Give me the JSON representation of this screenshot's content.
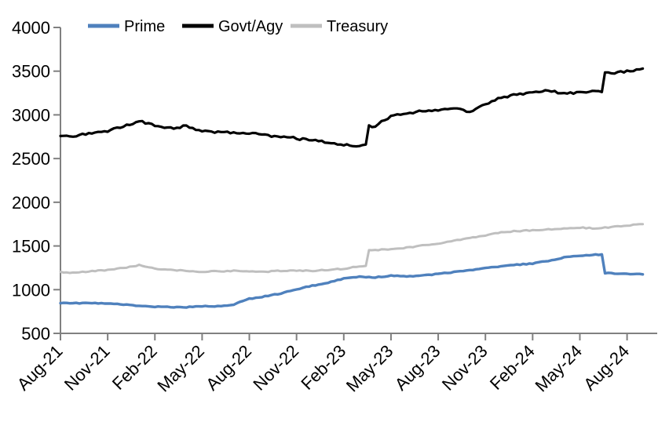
{
  "chart_data": {
    "type": "line",
    "title": "",
    "xlabel": "",
    "ylabel": "",
    "grid": "off",
    "legend_position": "top",
    "ylim": [
      500,
      4000
    ],
    "y_tick_step": 500,
    "y_tick_labels": [
      "4000",
      "3500",
      "3000",
      "2500",
      "2000",
      "1500",
      "1000",
      "500"
    ],
    "x_tick_labels": [
      "Aug-21",
      "Nov-21",
      "Feb-22",
      "May-22",
      "Aug-22",
      "Nov-22",
      "Feb-23",
      "May-23",
      "Aug-23",
      "Nov-23",
      "Feb-24",
      "May-24",
      "Aug-24"
    ],
    "x_tick_every_months": 3,
    "x": [
      "Aug-21",
      "Sep-21",
      "Oct-21",
      "Nov-21",
      "Dec-21",
      "Jan-22",
      "Feb-22",
      "Mar-22",
      "Apr-22",
      "May-22",
      "Jun-22",
      "Jul-22",
      "Aug-22",
      "Sep-22",
      "Oct-22",
      "Nov-22",
      "Dec-22",
      "Jan-23",
      "Feb-23",
      "Mar-23",
      "Apr-23",
      "May-23",
      "Jun-23",
      "Jul-23",
      "Aug-23",
      "Sep-23",
      "Oct-23",
      "Nov-23",
      "Dec-23",
      "Jan-24",
      "Feb-24",
      "Mar-24",
      "Apr-24",
      "May-24",
      "Jun-24",
      "Jul-24",
      "Aug-24",
      "Sep-24"
    ],
    "series": [
      {
        "name": "Prime",
        "color": "#4F81BD",
        "values": [
          850,
          845,
          845,
          840,
          830,
          815,
          805,
          800,
          800,
          810,
          810,
          830,
          895,
          925,
          955,
          1005,
          1045,
          1080,
          1125,
          1150,
          1140,
          1160,
          1155,
          1160,
          1180,
          1200,
          1220,
          1245,
          1265,
          1285,
          1300,
          1330,
          1370,
          1390,
          1400,
          1190,
          1180,
          1175
        ]
      },
      {
        "name": "Govt/Agy",
        "color": "#000000",
        "values": [
          2770,
          2760,
          2790,
          2810,
          2870,
          2930,
          2880,
          2850,
          2870,
          2810,
          2800,
          2795,
          2790,
          2770,
          2750,
          2730,
          2710,
          2690,
          2660,
          2650,
          2870,
          2990,
          3020,
          3040,
          3060,
          3080,
          3040,
          3120,
          3200,
          3230,
          3250,
          3280,
          3240,
          3260,
          3265,
          3480,
          3500,
          3530
        ]
      },
      {
        "name": "Treasury",
        "color": "#BFBFBF",
        "values": [
          1200,
          1195,
          1210,
          1225,
          1250,
          1280,
          1240,
          1225,
          1215,
          1205,
          1210,
          1215,
          1210,
          1205,
          1215,
          1220,
          1215,
          1225,
          1240,
          1270,
          1455,
          1460,
          1480,
          1505,
          1530,
          1560,
          1590,
          1620,
          1655,
          1670,
          1680,
          1690,
          1700,
          1710,
          1700,
          1715,
          1735,
          1750
        ]
      }
    ],
    "axis_color": "#808080",
    "text_color": "#000000",
    "background_color": "#FFFFFF"
  }
}
